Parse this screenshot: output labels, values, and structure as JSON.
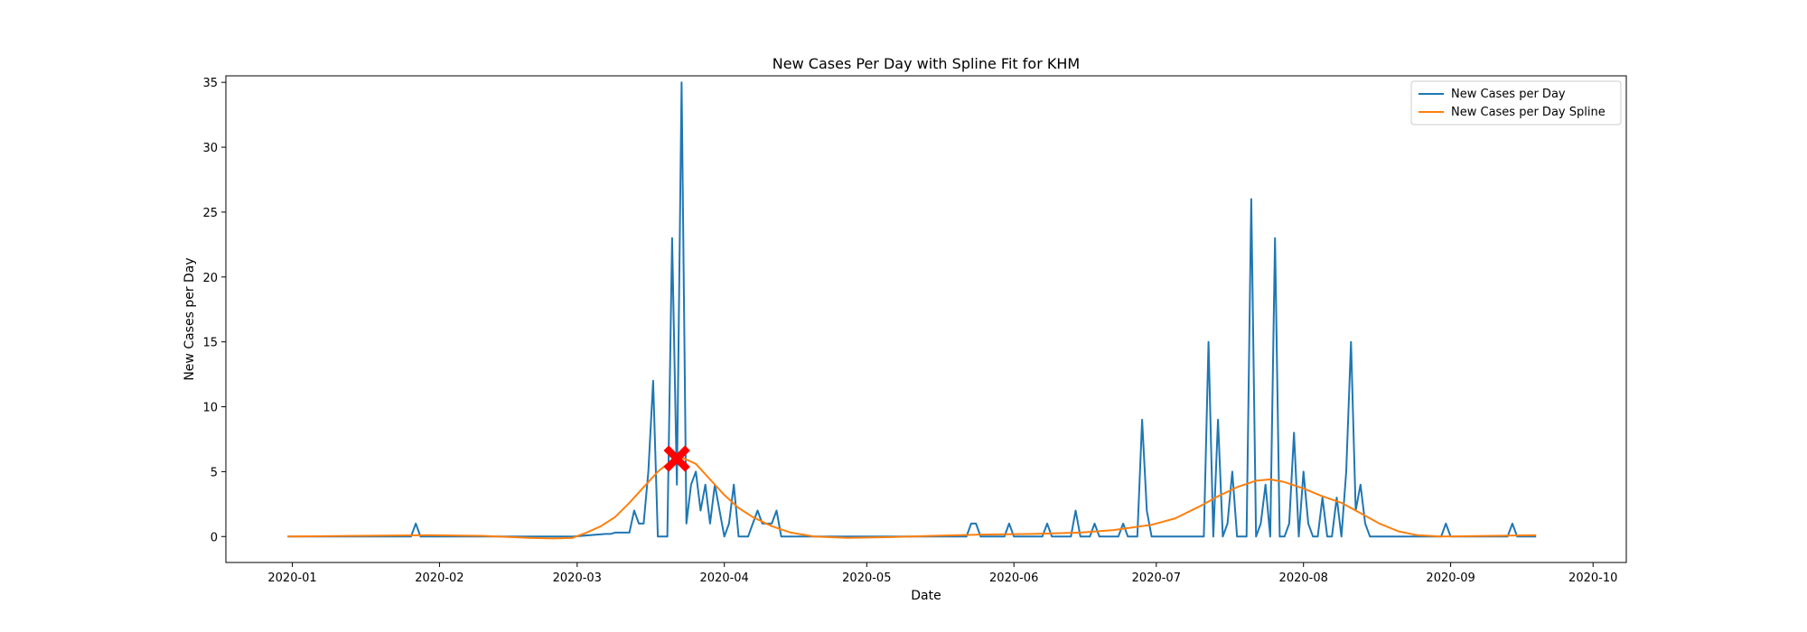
{
  "chart_data": {
    "type": "line",
    "title": "New Cases Per Day with Spline Fit for KHM",
    "xlabel": "Date",
    "ylabel": "New Cases per Day",
    "ylim": [
      -2,
      35.5
    ],
    "xlim": [
      "2019-12-18",
      "2020-10-08"
    ],
    "yticks": [
      0,
      5,
      10,
      15,
      20,
      25,
      30,
      35
    ],
    "xticks": [
      "2020-01",
      "2020-02",
      "2020-03",
      "2020-04",
      "2020-05",
      "2020-06",
      "2020-07",
      "2020-08",
      "2020-09",
      "2020-10"
    ],
    "legend_position": "top-right",
    "grid": false,
    "series": [
      {
        "name": "New Cases per Day",
        "color": "#1f77b4",
        "points": [
          [
            "2019-12-31",
            0
          ],
          [
            "2020-01-26",
            0
          ],
          [
            "2020-01-27",
            1
          ],
          [
            "2020-01-28",
            0
          ],
          [
            "2020-02-29",
            0
          ],
          [
            "2020-03-07",
            0.2
          ],
          [
            "2020-03-08",
            0.2
          ],
          [
            "2020-03-09",
            0.3
          ],
          [
            "2020-03-12",
            0.3
          ],
          [
            "2020-03-13",
            2
          ],
          [
            "2020-03-14",
            1
          ],
          [
            "2020-03-15",
            1
          ],
          [
            "2020-03-16",
            5
          ],
          [
            "2020-03-17",
            12
          ],
          [
            "2020-03-18",
            0
          ],
          [
            "2020-03-19",
            0
          ],
          [
            "2020-03-20",
            0
          ],
          [
            "2020-03-21",
            23
          ],
          [
            "2020-03-22",
            4
          ],
          [
            "2020-03-23",
            35
          ],
          [
            "2020-03-24",
            1
          ],
          [
            "2020-03-25",
            4
          ],
          [
            "2020-03-26",
            5
          ],
          [
            "2020-03-27",
            2
          ],
          [
            "2020-03-28",
            4
          ],
          [
            "2020-03-29",
            1
          ],
          [
            "2020-03-30",
            4
          ],
          [
            "2020-03-31",
            2
          ],
          [
            "2020-04-01",
            0
          ],
          [
            "2020-04-02",
            1
          ],
          [
            "2020-04-03",
            4
          ],
          [
            "2020-04-04",
            0
          ],
          [
            "2020-04-05",
            0
          ],
          [
            "2020-04-06",
            0
          ],
          [
            "2020-04-07",
            1
          ],
          [
            "2020-04-08",
            2
          ],
          [
            "2020-04-09",
            1
          ],
          [
            "2020-04-10",
            1
          ],
          [
            "2020-04-11",
            1
          ],
          [
            "2020-04-12",
            2
          ],
          [
            "2020-04-13",
            0
          ],
          [
            "2020-05-22",
            0
          ],
          [
            "2020-05-23",
            1
          ],
          [
            "2020-05-24",
            1
          ],
          [
            "2020-05-25",
            0
          ],
          [
            "2020-05-30",
            0
          ],
          [
            "2020-05-31",
            1
          ],
          [
            "2020-06-01",
            0
          ],
          [
            "2020-06-07",
            0
          ],
          [
            "2020-06-08",
            1
          ],
          [
            "2020-06-09",
            0
          ],
          [
            "2020-06-13",
            0
          ],
          [
            "2020-06-14",
            2
          ],
          [
            "2020-06-15",
            0
          ],
          [
            "2020-06-17",
            0
          ],
          [
            "2020-06-18",
            1
          ],
          [
            "2020-06-19",
            0
          ],
          [
            "2020-06-23",
            0
          ],
          [
            "2020-06-24",
            1
          ],
          [
            "2020-06-25",
            0
          ],
          [
            "2020-06-27",
            0
          ],
          [
            "2020-06-28",
            9
          ],
          [
            "2020-06-29",
            2
          ],
          [
            "2020-06-30",
            0
          ],
          [
            "2020-07-11",
            0
          ],
          [
            "2020-07-12",
            15
          ],
          [
            "2020-07-13",
            0
          ],
          [
            "2020-07-14",
            9
          ],
          [
            "2020-07-15",
            0
          ],
          [
            "2020-07-16",
            1
          ],
          [
            "2020-07-17",
            5
          ],
          [
            "2020-07-18",
            0
          ],
          [
            "2020-07-20",
            0
          ],
          [
            "2020-07-21",
            26
          ],
          [
            "2020-07-22",
            0
          ],
          [
            "2020-07-23",
            1
          ],
          [
            "2020-07-24",
            4
          ],
          [
            "2020-07-25",
            0
          ],
          [
            "2020-07-26",
            23
          ],
          [
            "2020-07-27",
            0
          ],
          [
            "2020-07-28",
            0
          ],
          [
            "2020-07-29",
            1
          ],
          [
            "2020-07-30",
            8
          ],
          [
            "2020-07-31",
            0
          ],
          [
            "2020-08-01",
            5
          ],
          [
            "2020-08-02",
            1
          ],
          [
            "2020-08-03",
            0
          ],
          [
            "2020-08-04",
            0
          ],
          [
            "2020-08-05",
            3
          ],
          [
            "2020-08-06",
            0
          ],
          [
            "2020-08-07",
            0
          ],
          [
            "2020-08-08",
            3
          ],
          [
            "2020-08-09",
            0
          ],
          [
            "2020-08-10",
            5
          ],
          [
            "2020-08-11",
            15
          ],
          [
            "2020-08-12",
            2
          ],
          [
            "2020-08-13",
            4
          ],
          [
            "2020-08-14",
            1
          ],
          [
            "2020-08-15",
            0
          ],
          [
            "2020-08-30",
            0
          ],
          [
            "2020-08-31",
            1
          ],
          [
            "2020-09-01",
            0
          ],
          [
            "2020-09-13",
            0
          ],
          [
            "2020-09-14",
            1
          ],
          [
            "2020-09-15",
            0
          ],
          [
            "2020-09-19",
            0
          ]
        ]
      },
      {
        "name": "New Cases per Day Spline",
        "color": "#ff7f0e",
        "points": [
          [
            "2019-12-31",
            0
          ],
          [
            "2020-01-15",
            0.05
          ],
          [
            "2020-01-30",
            0.1
          ],
          [
            "2020-02-10",
            0.05
          ],
          [
            "2020-02-20",
            -0.1
          ],
          [
            "2020-02-25",
            -0.15
          ],
          [
            "2020-02-29",
            -0.1
          ],
          [
            "2020-03-03",
            0.3
          ],
          [
            "2020-03-06",
            0.8
          ],
          [
            "2020-03-09",
            1.5
          ],
          [
            "2020-03-12",
            2.6
          ],
          [
            "2020-03-15",
            3.8
          ],
          [
            "2020-03-18",
            5.0
          ],
          [
            "2020-03-21",
            5.9
          ],
          [
            "2020-03-23",
            6.1
          ],
          [
            "2020-03-26",
            5.6
          ],
          [
            "2020-03-29",
            4.4
          ],
          [
            "2020-04-01",
            3.2
          ],
          [
            "2020-04-04",
            2.2
          ],
          [
            "2020-04-07",
            1.5
          ],
          [
            "2020-04-11",
            0.8
          ],
          [
            "2020-04-15",
            0.3
          ],
          [
            "2020-04-20",
            0
          ],
          [
            "2020-04-27",
            -0.1
          ],
          [
            "2020-05-05",
            -0.05
          ],
          [
            "2020-05-15",
            0.05
          ],
          [
            "2020-05-25",
            0.15
          ],
          [
            "2020-06-05",
            0.2
          ],
          [
            "2020-06-15",
            0.3
          ],
          [
            "2020-06-22",
            0.5
          ],
          [
            "2020-06-30",
            0.9
          ],
          [
            "2020-07-05",
            1.4
          ],
          [
            "2020-07-10",
            2.3
          ],
          [
            "2020-07-14",
            3.1
          ],
          [
            "2020-07-18",
            3.8
          ],
          [
            "2020-07-22",
            4.3
          ],
          [
            "2020-07-25",
            4.4
          ],
          [
            "2020-07-28",
            4.2
          ],
          [
            "2020-08-01",
            3.7
          ],
          [
            "2020-08-05",
            3.1
          ],
          [
            "2020-08-09",
            2.6
          ],
          [
            "2020-08-13",
            1.8
          ],
          [
            "2020-08-17",
            1.0
          ],
          [
            "2020-08-21",
            0.4
          ],
          [
            "2020-08-25",
            0.1
          ],
          [
            "2020-08-30",
            0
          ],
          [
            "2020-09-10",
            0.05
          ],
          [
            "2020-09-19",
            0.1
          ]
        ]
      }
    ],
    "markers": [
      {
        "symbol": "X",
        "color": "#ff0000",
        "date": "2020-03-22",
        "value": 6
      }
    ]
  }
}
